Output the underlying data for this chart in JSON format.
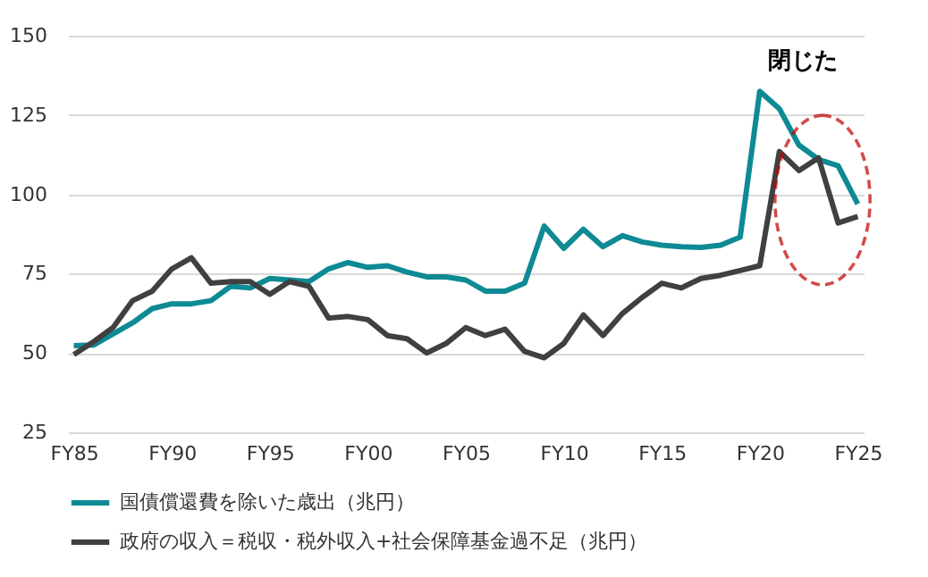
{
  "chart_data": {
    "type": "line",
    "categories": [
      "FY85",
      null,
      null,
      null,
      null,
      "FY90",
      null,
      null,
      null,
      null,
      "FY95",
      null,
      null,
      null,
      null,
      "FY00",
      null,
      null,
      null,
      null,
      "FY05",
      null,
      null,
      null,
      null,
      "FY10",
      null,
      null,
      null,
      null,
      "FY15",
      null,
      null,
      null,
      null,
      "FY20",
      null,
      null,
      null,
      null,
      "FY25"
    ],
    "series": [
      {
        "name": "国債償還費を除いた歳出（兆円）",
        "color": "#0e8a94",
        "values": [
          52.3,
          52.5,
          56,
          59.5,
          64,
          65.5,
          65.5,
          66.5,
          71,
          70.5,
          73.5,
          73,
          72.5,
          76.5,
          78.5,
          77,
          77.5,
          75.5,
          74,
          74,
          73,
          69.5,
          69.5,
          72,
          90,
          83,
          89,
          83.5,
          87,
          85,
          84,
          83.5,
          83.3,
          84,
          86.5,
          132.5,
          127,
          115.5,
          111,
          109,
          97
        ]
      },
      {
        "name": "政府の収入＝税収・税外収入+社会保障基金過不足（兆円）",
        "color": "#404040",
        "values": [
          49.5,
          53.5,
          58,
          66.5,
          69.5,
          76.5,
          80,
          72,
          72.5,
          72.5,
          68.5,
          72.5,
          71,
          61,
          61.5,
          60.5,
          55.5,
          54.5,
          50,
          53,
          58,
          55.5,
          57.5,
          50.5,
          48.5,
          53,
          62,
          55.5,
          62.5,
          67.5,
          72,
          70.5,
          73.5,
          74.5,
          76,
          77.5,
          113.5,
          107.5,
          111.5,
          91,
          93
        ]
      }
    ],
    "ylim": [
      25,
      150
    ],
    "yticks": [
      25,
      50,
      75,
      100,
      125,
      150
    ],
    "grid": "y",
    "legend": "bottom",
    "annotations": [
      "閉じた"
    ]
  }
}
